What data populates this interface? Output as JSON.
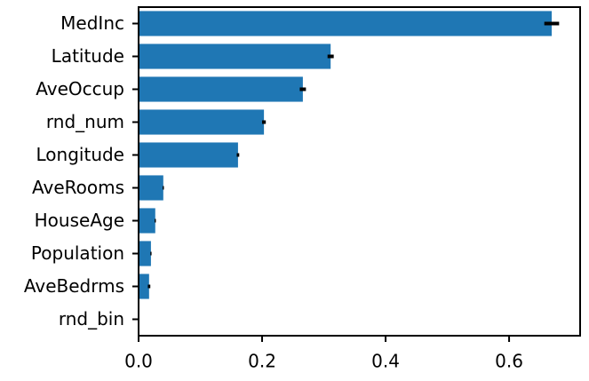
{
  "chart_data": {
    "type": "bar",
    "orientation": "horizontal",
    "categories": [
      "MedInc",
      "Latitude",
      "AveOccup",
      "rnd_num",
      "Longitude",
      "AveRooms",
      "HouseAge",
      "Population",
      "AveBedrms",
      "rnd_bin"
    ],
    "values": [
      0.669,
      0.311,
      0.266,
      0.203,
      0.161,
      0.04,
      0.027,
      0.02,
      0.017,
      0.0
    ],
    "errors": [
      0.012,
      0.005,
      0.005,
      0.003,
      0.002,
      0.001,
      0.001,
      0.001,
      0.002,
      0.0
    ],
    "color": "#1f77b4",
    "error_color": "#000000",
    "xlim": [
      0,
      0.715
    ],
    "xticks": [
      {
        "value": 0,
        "label": "0.0"
      },
      {
        "value": 0.2,
        "label": "0.2"
      },
      {
        "value": 0.4,
        "label": "0.4"
      },
      {
        "value": 0.6,
        "label": "0.6"
      }
    ],
    "grid": false
  }
}
